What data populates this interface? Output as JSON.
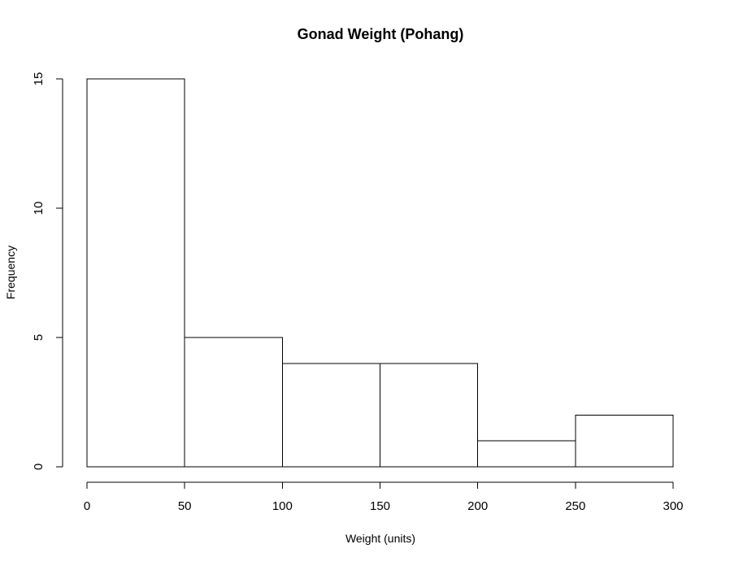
{
  "chart_data": {
    "type": "bar",
    "title": "Gonad Weight (Pohang)",
    "xlabel": "Weight (units)",
    "ylabel": "Frequency",
    "bins": [
      {
        "start": 0,
        "end": 50,
        "count": 15
      },
      {
        "start": 50,
        "end": 100,
        "count": 5
      },
      {
        "start": 100,
        "end": 150,
        "count": 4
      },
      {
        "start": 150,
        "end": 200,
        "count": 4
      },
      {
        "start": 200,
        "end": 250,
        "count": 1
      },
      {
        "start": 250,
        "end": 300,
        "count": 2
      }
    ],
    "xlim": [
      0,
      300
    ],
    "ylim": [
      0,
      15
    ],
    "x_ticks": [
      0,
      50,
      100,
      150,
      200,
      250,
      300
    ],
    "y_ticks": [
      0,
      5,
      10,
      15
    ],
    "grid": false,
    "bar_fill": "#ffffff",
    "bar_stroke": "#000000"
  }
}
